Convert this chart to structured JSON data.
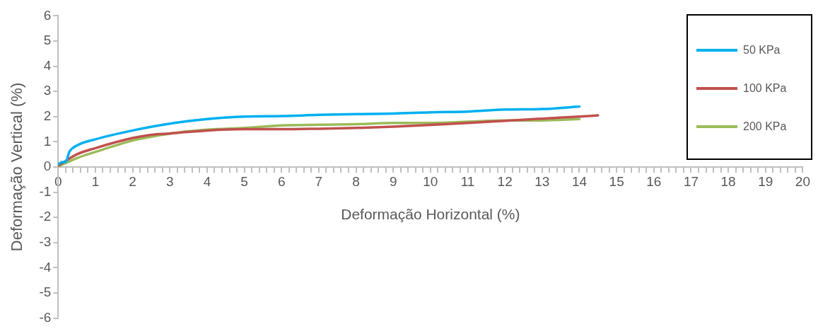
{
  "chart_data": {
    "type": "line",
    "xlabel": "Deformação Horizontal (%)",
    "ylabel": "Deformação Vertical (%)",
    "xlim": [
      0,
      20
    ],
    "ylim": [
      -6,
      6
    ],
    "xticks": [
      0,
      {
        "value": 0.2,
        "label": null
      },
      {
        "value": 0.4,
        "label": null
      },
      {
        "value": 0.6,
        "label": null
      },
      {
        "value": 0.8,
        "label": null
      },
      1,
      {
        "value": 1.2,
        "label": null
      },
      {
        "value": 1.4,
        "label": null
      },
      {
        "value": 1.6,
        "label": null
      },
      {
        "value": 1.8,
        "label": null
      },
      2,
      {
        "value": 2.2,
        "label": null
      },
      {
        "value": 2.4,
        "label": null
      },
      {
        "value": 2.6,
        "label": null
      },
      {
        "value": 2.8,
        "label": null
      },
      3,
      {
        "value": 3.2,
        "label": null
      },
      {
        "value": 3.4,
        "label": null
      },
      {
        "value": 3.6,
        "label": null
      },
      {
        "value": 3.8,
        "label": null
      },
      4,
      {
        "value": 4.2,
        "label": null
      },
      {
        "value": 4.4,
        "label": null
      },
      {
        "value": 4.6,
        "label": null
      },
      {
        "value": 4.8,
        "label": null
      },
      5,
      {
        "value": 5.2,
        "label": null
      },
      {
        "value": 5.4,
        "label": null
      },
      {
        "value": 5.6,
        "label": null
      },
      {
        "value": 5.8,
        "label": null
      },
      6,
      {
        "value": 6.2,
        "label": null
      },
      {
        "value": 6.4,
        "label": null
      },
      {
        "value": 6.6,
        "label": null
      },
      {
        "value": 6.8,
        "label": null
      },
      7,
      {
        "value": 7.2,
        "label": null
      },
      {
        "value": 7.4,
        "label": null
      },
      {
        "value": 7.6,
        "label": null
      },
      {
        "value": 7.8,
        "label": null
      },
      8,
      {
        "value": 8.2,
        "label": null
      },
      {
        "value": 8.4,
        "label": null
      },
      {
        "value": 8.6,
        "label": null
      },
      {
        "value": 8.8,
        "label": null
      },
      9,
      {
        "value": 9.2,
        "label": null
      },
      {
        "value": 9.4,
        "label": null
      },
      {
        "value": 9.6,
        "label": null
      },
      {
        "value": 9.8,
        "label": null
      },
      10,
      {
        "value": 10.2,
        "label": null
      },
      {
        "value": 10.4,
        "label": null
      },
      {
        "value": 10.6,
        "label": null
      },
      {
        "value": 10.8,
        "label": null
      },
      11,
      {
        "value": 11.2,
        "label": null
      },
      {
        "value": 11.4,
        "label": null
      },
      {
        "value": 11.6,
        "label": null
      },
      {
        "value": 11.8,
        "label": null
      },
      12,
      {
        "value": 12.2,
        "label": null
      },
      {
        "value": 12.4,
        "label": null
      },
      {
        "value": 12.6,
        "label": null
      },
      {
        "value": 12.8,
        "label": null
      },
      13,
      {
        "value": 13.2,
        "label": null
      },
      {
        "value": 13.4,
        "label": null
      },
      {
        "value": 13.6,
        "label": null
      },
      {
        "value": 13.8,
        "label": null
      },
      14,
      {
        "value": 14.2,
        "label": null
      },
      {
        "value": 14.4,
        "label": null
      },
      {
        "value": 14.6,
        "label": null
      },
      {
        "value": 14.8,
        "label": null
      },
      15,
      {
        "value": 15.2,
        "label": null
      },
      {
        "value": 15.4,
        "label": null
      },
      {
        "value": 15.6,
        "label": null
      },
      {
        "value": 15.8,
        "label": null
      },
      16,
      {
        "value": 16.2,
        "label": null
      },
      {
        "value": 16.4,
        "label": null
      },
      {
        "value": 16.6,
        "label": null
      },
      {
        "value": 16.8,
        "label": null
      },
      17,
      {
        "value": 17.2,
        "label": null
      },
      {
        "value": 17.4,
        "label": null
      },
      {
        "value": 17.6,
        "label": null
      },
      {
        "value": 17.8,
        "label": null
      },
      18,
      {
        "value": 18.2,
        "label": null
      },
      {
        "value": 18.4,
        "label": null
      },
      {
        "value": 18.6,
        "label": null
      },
      {
        "value": 18.8,
        "label": null
      },
      19,
      {
        "value": 19.2,
        "label": null
      },
      {
        "value": 19.4,
        "label": null
      },
      {
        "value": 19.6,
        "label": null
      },
      {
        "value": 19.8,
        "label": null
      },
      20
    ],
    "yticks": [
      -6,
      -5,
      -4,
      -3,
      -2,
      -1,
      0,
      1,
      2,
      3,
      4,
      5,
      6
    ],
    "grid": false,
    "legend": "top right",
    "marker": "none",
    "line_style": "solid",
    "series": [
      {
        "name": "50 KPa",
        "color": "#00b0f0",
        "x": [
          0,
          0.1,
          0.2,
          0.3,
          0.5,
          1,
          2,
          3,
          4,
          5,
          6,
          7,
          8,
          9,
          10,
          11,
          12,
          13,
          14
        ],
        "values": [
          0.1,
          0.2,
          0.2,
          0.6,
          0.85,
          1.1,
          1.45,
          1.72,
          1.9,
          2.0,
          2.02,
          2.07,
          2.1,
          2.12,
          2.17,
          2.2,
          2.28,
          2.3,
          2.4
        ]
      },
      {
        "name": "100 KPa",
        "color": "#c0504d",
        "x": [
          0,
          0.5,
          1,
          2,
          2.5,
          3,
          4,
          5,
          6,
          7,
          8,
          9,
          10,
          11,
          12,
          13,
          14,
          14.5
        ],
        "values": [
          0.05,
          0.5,
          0.75,
          1.15,
          1.28,
          1.33,
          1.45,
          1.5,
          1.5,
          1.52,
          1.55,
          1.6,
          1.67,
          1.75,
          1.83,
          1.92,
          2.0,
          2.05
        ]
      },
      {
        "name": "200 KPa",
        "color": "#9bbb59",
        "x": [
          0,
          0.5,
          1,
          2,
          2.5,
          3,
          4,
          5,
          6,
          7,
          8,
          9,
          10,
          11,
          12,
          13,
          14
        ],
        "values": [
          0.02,
          0.35,
          0.6,
          1.05,
          1.2,
          1.33,
          1.48,
          1.55,
          1.65,
          1.68,
          1.7,
          1.75,
          1.75,
          1.8,
          1.85,
          1.85,
          1.9
        ]
      }
    ]
  }
}
